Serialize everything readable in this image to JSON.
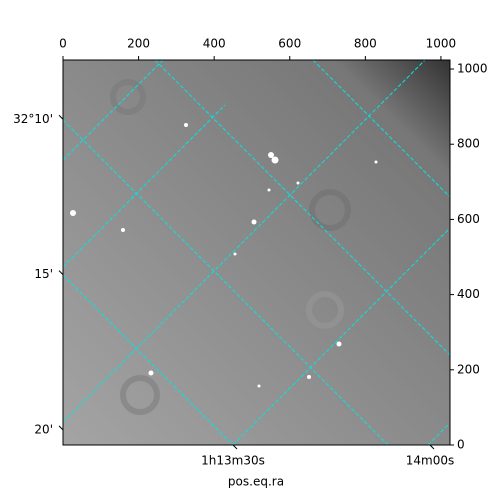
{
  "chart_data": {
    "type": "image",
    "xlabel": "pos.eq.ra",
    "xlim": [
      0,
      1024
    ],
    "xticks": [
      0,
      200,
      400,
      600,
      800,
      1000
    ],
    "ylim": [
      0,
      1024
    ],
    "yticks": [
      0,
      200,
      400,
      600,
      800,
      1000
    ],
    "ralim": [
      4384.1,
      4443.05
    ],
    "raticks": [
      {
        "value": 4410,
        "label": "1h13m30s"
      },
      {
        "value": 4440,
        "label": "14m00s"
      }
    ],
    "declim": [
      32.1349,
      32.3414
    ],
    "decticks": [
      {
        "value": 32.1667,
        "label": "32°10'"
      },
      {
        "value": 32.25,
        "label": "15'"
      },
      {
        "value": 32.3333,
        "label": "20'"
      }
    ]
  }
}
